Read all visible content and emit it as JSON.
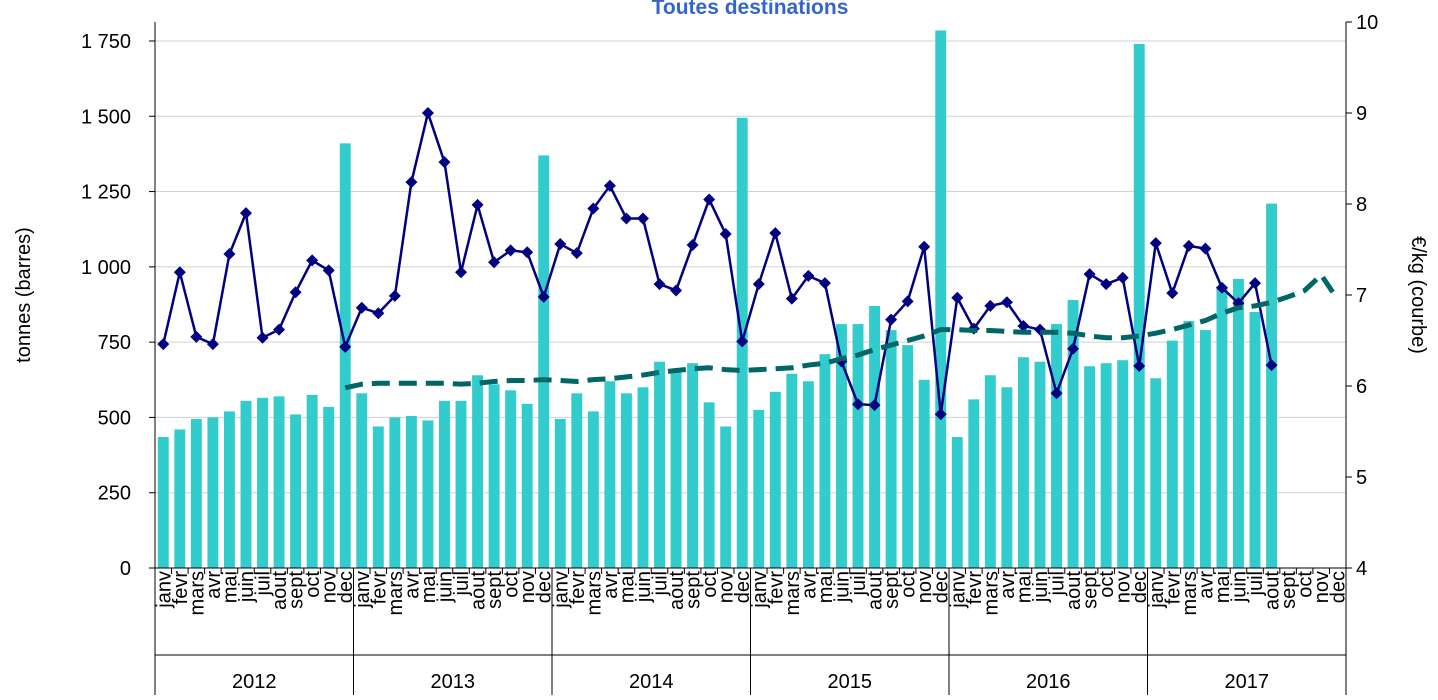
{
  "chart_data": {
    "type": "bar-line",
    "title": "Toutes destinations",
    "ylabel": "tonnes (barres)",
    "y2label": "€/kg (courbe)",
    "categories": [
      "janv",
      "fevr",
      "mars",
      "avr",
      "mai",
      "juin",
      "juil",
      "aout",
      "sept",
      "oct",
      "nov",
      "dec",
      "janv",
      "fevr",
      "mars",
      "avr",
      "mai",
      "juin",
      "juil",
      "aout",
      "sept",
      "oct",
      "nov",
      "dec",
      "janv",
      "fevr",
      "mars",
      "avr",
      "mai",
      "juin",
      "juil",
      "aout",
      "sept",
      "oct",
      "nov",
      "dec",
      "janv",
      "fevr",
      "mars",
      "avr",
      "mai",
      "juin",
      "juil",
      "aout",
      "sept",
      "oct",
      "nov",
      "dec",
      "janv",
      "fevr",
      "mars",
      "avr",
      "mai",
      "juin",
      "juil",
      "aout",
      "sept",
      "oct",
      "nov",
      "dec",
      "janv",
      "fevr",
      "mars",
      "avr",
      "mai",
      "juin",
      "juil",
      "aout",
      "sept",
      "oct",
      "nov",
      "dec"
    ],
    "years": [
      "2012",
      "2013",
      "2014",
      "2015",
      "2016",
      "2017"
    ],
    "ylim": [
      0,
      1813
    ],
    "yticks": [
      0,
      250,
      500,
      750,
      {
        "value": 1000,
        "label": "1 000"
      },
      {
        "value": 1250,
        "label": "1 250"
      },
      {
        "value": 1500,
        "label": "1 500"
      },
      {
        "value": 1750,
        "label": "1 750"
      }
    ],
    "y2lim": [
      4,
      10
    ],
    "y2ticks": [
      4,
      5,
      6,
      7,
      8,
      9,
      10
    ],
    "grid": true,
    "series": [
      {
        "type": "bar",
        "color": "#33cccc",
        "values": [
          435,
          460,
          495,
          500,
          520,
          555,
          565,
          570,
          510,
          575,
          535,
          1410,
          580,
          470,
          500,
          505,
          490,
          555,
          555,
          640,
          610,
          590,
          545,
          1370,
          495,
          580,
          520,
          620,
          580,
          600,
          685,
          660,
          680,
          550,
          470,
          1495,
          525,
          585,
          645,
          620,
          710,
          810,
          810,
          870,
          790,
          740,
          625,
          1785,
          435,
          560,
          640,
          600,
          700,
          685,
          810,
          890,
          670,
          680,
          690,
          1740,
          630,
          755,
          820,
          790,
          935,
          960,
          850,
          1210,
          null,
          null,
          null,
          null
        ]
      },
      {
        "type": "line",
        "axis": "y2",
        "color": "#000080",
        "marker": "diamond",
        "values": [
          6.46,
          7.25,
          6.54,
          6.46,
          7.45,
          7.9,
          6.53,
          6.62,
          7.03,
          7.38,
          7.27,
          6.43,
          6.86,
          6.8,
          6.99,
          8.24,
          9.0,
          8.46,
          7.25,
          7.99,
          7.36,
          7.49,
          7.47,
          6.98,
          7.56,
          7.46,
          7.95,
          8.2,
          7.84,
          7.84,
          7.12,
          7.05,
          7.55,
          8.05,
          7.67,
          6.49,
          7.12,
          7.68,
          6.96,
          7.21,
          7.13,
          6.27,
          5.8,
          5.79,
          6.73,
          6.93,
          7.53,
          5.69,
          6.97,
          6.63,
          6.88,
          6.92,
          6.66,
          6.62,
          5.92,
          6.41,
          7.23,
          7.12,
          7.19,
          6.22,
          7.57,
          7.02,
          7.54,
          7.51,
          7.08,
          6.91,
          7.13,
          6.23,
          null,
          null,
          null,
          null
        ]
      },
      {
        "type": "line",
        "axis": "y2",
        "color": "#006666",
        "dashed": true,
        "values": [
          null,
          null,
          null,
          null,
          null,
          null,
          null,
          null,
          null,
          null,
          null,
          5.98,
          6.02,
          6.03,
          6.03,
          6.03,
          6.03,
          6.03,
          6.02,
          6.03,
          6.05,
          6.06,
          6.06,
          6.07,
          6.06,
          6.05,
          6.07,
          6.08,
          6.1,
          6.12,
          6.15,
          6.17,
          6.19,
          6.2,
          6.18,
          6.17,
          6.18,
          6.19,
          6.2,
          6.23,
          6.25,
          6.3,
          6.34,
          6.4,
          6.45,
          6.5,
          6.55,
          6.62,
          6.62,
          6.61,
          6.61,
          6.6,
          6.59,
          6.59,
          6.59,
          6.58,
          6.55,
          6.53,
          6.53,
          6.55,
          6.58,
          6.62,
          6.67,
          6.72,
          6.8,
          6.86,
          6.88,
          6.92,
          6.98,
          7.05,
          7.22,
          6.95
        ]
      }
    ]
  }
}
